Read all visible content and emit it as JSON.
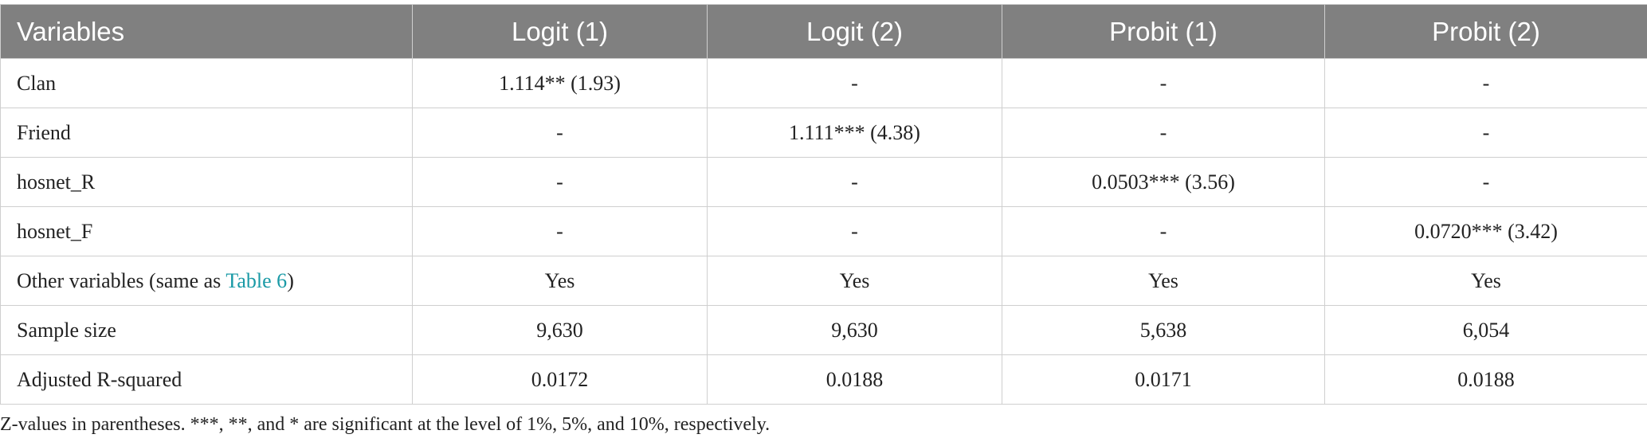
{
  "table": {
    "header": [
      "Variables",
      "Logit (1)",
      "Logit (2)",
      "Probit (1)",
      "Probit (2)"
    ],
    "rows": [
      [
        "Clan",
        "1.114** (1.93)",
        "-",
        "-",
        "-"
      ],
      [
        "Friend",
        "-",
        "1.111*** (4.38)",
        "-",
        "-"
      ],
      [
        "hosnet_R",
        "-",
        "-",
        "0.0503*** (3.56)",
        "-"
      ],
      [
        "hosnet_F",
        "-",
        "-",
        "-",
        "0.0720*** (3.42)"
      ],
      [
        {
          "before": "Other variables (same as ",
          "link": "Table 6",
          "after": ")"
        },
        "Yes",
        "Yes",
        "Yes",
        "Yes"
      ],
      [
        "Sample size",
        "9,630",
        "9,630",
        "5,638",
        "6,054"
      ],
      [
        "Adjusted R-squared",
        "0.0172",
        "0.0188",
        "0.0171",
        "0.0188"
      ]
    ],
    "footnote": "Z-values in parentheses. ***, **, and * are significant at the level of 1%, 5%, and 10%, respectively."
  }
}
